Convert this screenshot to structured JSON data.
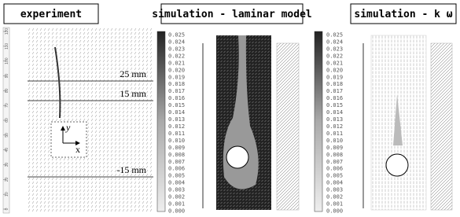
{
  "panels": [
    {
      "title": "experiment"
    },
    {
      "title": "simulation - laminar model"
    },
    {
      "title": "simulation - k ω"
    }
  ],
  "experiment": {
    "ruler_labels": [
      "0",
      "10",
      "20",
      "30",
      "40",
      "50",
      "60",
      "70",
      "80",
      "90",
      "100",
      "110",
      "120"
    ],
    "levels": [
      "25 mm",
      "15 mm",
      "-15 mm"
    ],
    "axis_y": "y",
    "axis_x": "x"
  },
  "colorbars": [
    {
      "labels": [
        "0.025",
        "0.024",
        "0.023",
        "0.022",
        "0.021",
        "0.020",
        "0.019",
        "0.018",
        "0.017",
        "0.016",
        "0.015",
        "0.014",
        "0.013",
        "0.012",
        "0.011",
        "0.010",
        "0.009",
        "0.008",
        "0.007",
        "0.006",
        "0.005",
        "0.004",
        "0.003",
        "0.002",
        "0.001",
        "0.000"
      ]
    },
    {
      "labels": [
        "0.025",
        "0.024",
        "0.023",
        "0.022",
        "0.021",
        "0.020",
        "0.019",
        "0.018",
        "0.017",
        "0.016",
        "0.015",
        "0.014",
        "0.013",
        "0.012",
        "0.011",
        "0.010",
        "0.009",
        "0.008",
        "0.007",
        "0.006",
        "0.005",
        "0.004",
        "0.003",
        "0.002",
        "0.001",
        "0.000"
      ]
    }
  ]
}
